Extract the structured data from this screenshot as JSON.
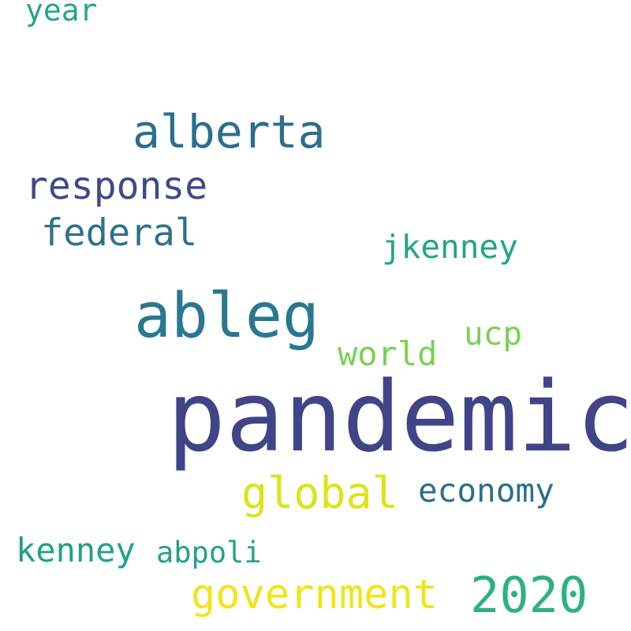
{
  "words": [
    {
      "id": "pandemic",
      "text": "pandemic",
      "color": "#414487"
    },
    {
      "id": "ableg",
      "text": "ableg",
      "color": "#2a788e"
    },
    {
      "id": "alberta",
      "text": "alberta",
      "color": "#2a6f8e"
    },
    {
      "id": "response",
      "text": "response",
      "color": "#3e4a89"
    },
    {
      "id": "federal",
      "text": "federal",
      "color": "#2c728e"
    },
    {
      "id": "jkenney",
      "text": "jkenney",
      "color": "#21a685"
    },
    {
      "id": "ucp",
      "text": "ucp",
      "color": "#7ad151"
    },
    {
      "id": "world",
      "text": "world",
      "color": "#7ad151"
    },
    {
      "id": "global",
      "text": "global",
      "color": "#dde318"
    },
    {
      "id": "economy",
      "text": "economy",
      "color": "#2d6e8e"
    },
    {
      "id": "kenney",
      "text": "kenney",
      "color": "#1fa187"
    },
    {
      "id": "abpoli",
      "text": "abpoli",
      "color": "#25a18a"
    },
    {
      "id": "government",
      "text": "government",
      "color": "#f0e51a"
    },
    {
      "id": "2020",
      "text": "2020",
      "color": "#2db27d"
    },
    {
      "id": "year",
      "text": "year",
      "color": "#22a785"
    }
  ]
}
